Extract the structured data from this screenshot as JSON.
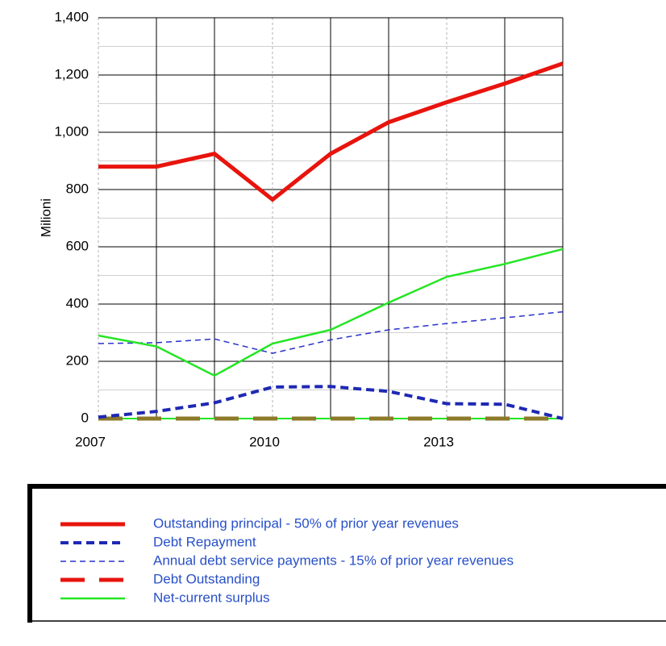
{
  "chart_data": {
    "type": "line",
    "y_label": "Milioni",
    "x": [
      2007,
      2008,
      2009,
      2010,
      2011,
      2012,
      2013,
      2014,
      2015
    ],
    "xlim": [
      2007,
      2015
    ],
    "xticks": [
      2007,
      2010,
      2013
    ],
    "ylim": [
      0,
      1400
    ],
    "yticks": [
      0,
      200,
      400,
      600,
      800,
      {
        "value": 1000,
        "label": "1,000"
      },
      {
        "value": 1200,
        "label": "1,200"
      },
      {
        "value": 1400,
        "label": "1,400"
      }
    ],
    "grid": true,
    "legend": "bottom",
    "series": [
      {
        "name": "Outstanding principal - 50% of prior year revenues",
        "color": "#e8140e",
        "values": [
          880,
          880,
          925,
          765,
          925,
          1035,
          1105,
          1170,
          1240
        ]
      },
      {
        "name": "Debt Repayment",
        "color": "#1e28b4",
        "values": [
          5,
          25,
          55,
          110,
          112,
          95,
          52,
          50,
          0
        ]
      },
      {
        "name": "Annual debt service payments - 15% of prior year revenues",
        "color": "#2832c8",
        "values": [
          262,
          265,
          278,
          228,
          275,
          310,
          332,
          352,
          373
        ]
      },
      {
        "name": "Debt Outstanding",
        "color": "#e8140e",
        "values": [
          0,
          0,
          0,
          0,
          0,
          0,
          0,
          0,
          0
        ]
      },
      {
        "name": "Net-current surplus",
        "color": "#22e622",
        "values": [
          290,
          252,
          150,
          262,
          310,
          405,
          495,
          540,
          592
        ]
      }
    ]
  }
}
